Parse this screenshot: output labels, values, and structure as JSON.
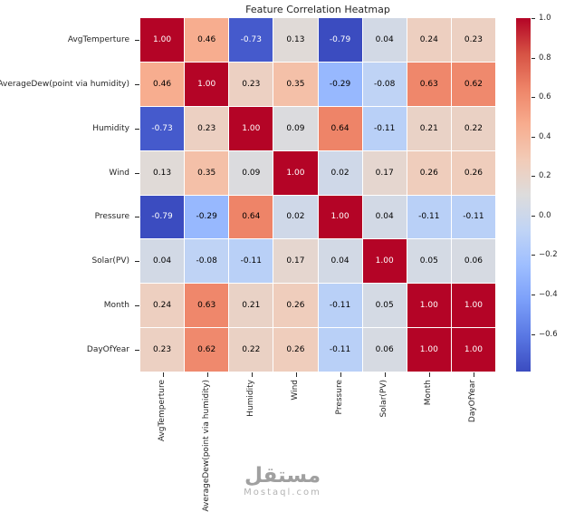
{
  "chart_data": {
    "type": "heatmap",
    "title": "Feature Correlation Heatmap",
    "categories": [
      "AvgTemperture",
      "AverageDew(point via humidity)",
      "Humidity",
      "Wind",
      "Pressure",
      "Solar(PV)",
      "Month",
      "DayOfYear"
    ],
    "matrix": [
      [
        1.0,
        0.46,
        -0.73,
        0.13,
        -0.79,
        0.04,
        0.24,
        0.23
      ],
      [
        0.46,
        1.0,
        0.23,
        0.35,
        -0.29,
        -0.08,
        0.63,
        0.62
      ],
      [
        -0.73,
        0.23,
        1.0,
        0.09,
        0.64,
        -0.11,
        0.21,
        0.22
      ],
      [
        0.13,
        0.35,
        0.09,
        1.0,
        0.02,
        0.17,
        0.26,
        0.26
      ],
      [
        -0.79,
        -0.29,
        0.64,
        0.02,
        1.0,
        0.04,
        -0.11,
        -0.11
      ],
      [
        0.04,
        -0.08,
        -0.11,
        0.17,
        0.04,
        1.0,
        0.05,
        0.06
      ],
      [
        0.24,
        0.63,
        0.21,
        0.26,
        -0.11,
        0.05,
        1.0,
        1.0
      ],
      [
        0.23,
        0.62,
        0.22,
        0.26,
        -0.11,
        0.06,
        1.0,
        1.0
      ]
    ],
    "colormap": "coolwarm",
    "vmin": -0.79,
    "vmax": 1.0,
    "annot_format": ".2f",
    "colorbar_ticks": [
      1.0,
      0.8,
      0.6,
      0.4,
      0.2,
      0.0,
      -0.2,
      -0.4,
      -0.6
    ],
    "legend_position": "right",
    "grid": true
  },
  "watermark": {
    "arabic": "مستقل",
    "latin": "Mostaql.com"
  },
  "colors": {
    "background": "#ffffff",
    "grid_line": "#ffffff",
    "tick": "#262626",
    "watermark": "#a0a0a0"
  }
}
